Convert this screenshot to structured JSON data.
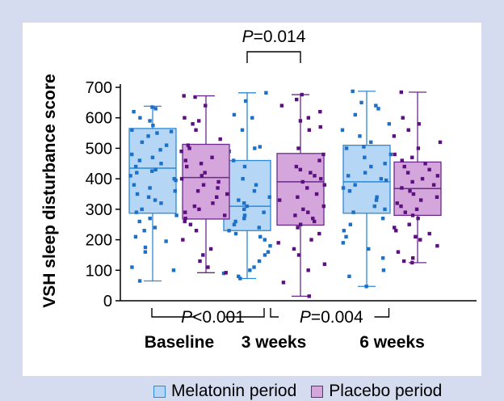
{
  "chart_data": {
    "type": "box",
    "ylabel": "VSH sleep disturbance score",
    "ylim": [
      0,
      700
    ],
    "yticks": [
      0,
      100,
      200,
      300,
      400,
      500,
      600,
      700
    ],
    "categories": [
      "Baseline",
      "3 weeks",
      "6 weeks"
    ],
    "colors": {
      "Melatonin period": {
        "fill": "#b5d6f5",
        "point": "#1d70c8",
        "border": "#2c8ad6"
      },
      "Placebo period": {
        "fill": "#d4a6dc",
        "point": "#5c0f80",
        "border": "#6a2a8a"
      }
    },
    "series": [
      {
        "name": "Melatonin period",
        "boxes": [
          {
            "min": 65,
            "q1": 287,
            "median": 435,
            "q3": 565,
            "max": 638
          },
          {
            "min": 73,
            "q1": 230,
            "median": 310,
            "q3": 460,
            "max": 682
          },
          {
            "min": 47,
            "q1": 287,
            "median": 390,
            "q3": 510,
            "max": 687
          }
        ],
        "points": [
          [
            635,
            630,
            620,
            600,
            590,
            575,
            560,
            555,
            550,
            540,
            520,
            510,
            495,
            480,
            470,
            460,
            450,
            440,
            430,
            425,
            420,
            410,
            400,
            395,
            380,
            370,
            360,
            350,
            340,
            330,
            320,
            300,
            290,
            280,
            270,
            260,
            240,
            230,
            210,
            195,
            175,
            160,
            110,
            100,
            65
          ],
          [
            682,
            655,
            610,
            600,
            560,
            505,
            500,
            490,
            460,
            440,
            430,
            410,
            400,
            380,
            360,
            340,
            330,
            320,
            310,
            300,
            290,
            280,
            270,
            260,
            250,
            240,
            230,
            220,
            210,
            200,
            180,
            160,
            150,
            130,
            110,
            100,
            90,
            80,
            73
          ],
          [
            687,
            650,
            640,
            630,
            610,
            580,
            560,
            540,
            520,
            505,
            500,
            480,
            470,
            450,
            440,
            420,
            410,
            400,
            395,
            380,
            370,
            360,
            340,
            330,
            310,
            300,
            290,
            270,
            250,
            230,
            210,
            190,
            170,
            140,
            100,
            80,
            47
          ]
        ]
      },
      {
        "name": "Placebo period",
        "boxes": [
          {
            "min": 92,
            "q1": 268,
            "median": 404,
            "q3": 513,
            "max": 672
          },
          {
            "min": 15,
            "q1": 248,
            "median": 390,
            "q3": 483,
            "max": 676
          },
          {
            "min": 125,
            "q1": 280,
            "median": 368,
            "q3": 455,
            "max": 684
          }
        ],
        "points": [
          [
            672,
            668,
            640,
            600,
            590,
            580,
            560,
            530,
            510,
            500,
            490,
            470,
            460,
            450,
            440,
            420,
            410,
            400,
            390,
            380,
            370,
            360,
            350,
            340,
            320,
            310,
            300,
            290,
            280,
            270,
            260,
            250,
            230,
            200,
            170,
            150,
            130,
            110,
            92
          ],
          [
            676,
            660,
            640,
            620,
            600,
            590,
            570,
            560,
            500,
            480,
            460,
            440,
            430,
            420,
            410,
            400,
            390,
            380,
            370,
            350,
            340,
            330,
            310,
            300,
            290,
            280,
            270,
            260,
            250,
            240,
            220,
            200,
            190,
            170,
            150,
            120,
            100,
            60,
            15
          ],
          [
            684,
            600,
            580,
            560,
            540,
            520,
            500,
            480,
            470,
            460,
            450,
            440,
            430,
            420,
            410,
            400,
            390,
            380,
            370,
            360,
            350,
            340,
            330,
            320,
            310,
            300,
            290,
            280,
            270,
            250,
            240,
            230,
            220,
            210,
            200,
            180,
            160,
            140,
            130,
            125
          ]
        ]
      }
    ],
    "annotations": [
      {
        "text": "P=0.014",
        "between": [
          "3 weeks Melatonin",
          "3 weeks Placebo"
        ],
        "position": "top"
      },
      {
        "text": "P<0.001",
        "between": [
          "Baseline",
          "3 weeks"
        ],
        "position": "below-axis"
      },
      {
        "text": "P=0.004",
        "between": [
          "3 weeks",
          "6 weeks"
        ],
        "position": "below-axis"
      }
    ]
  },
  "legend": [
    {
      "label": "Melatonin period",
      "color": "#b5d6f5",
      "border": "#2c8ad6"
    },
    {
      "label": "Placebo period",
      "color": "#d4a6dc",
      "border": "#6a2a8a"
    }
  ]
}
